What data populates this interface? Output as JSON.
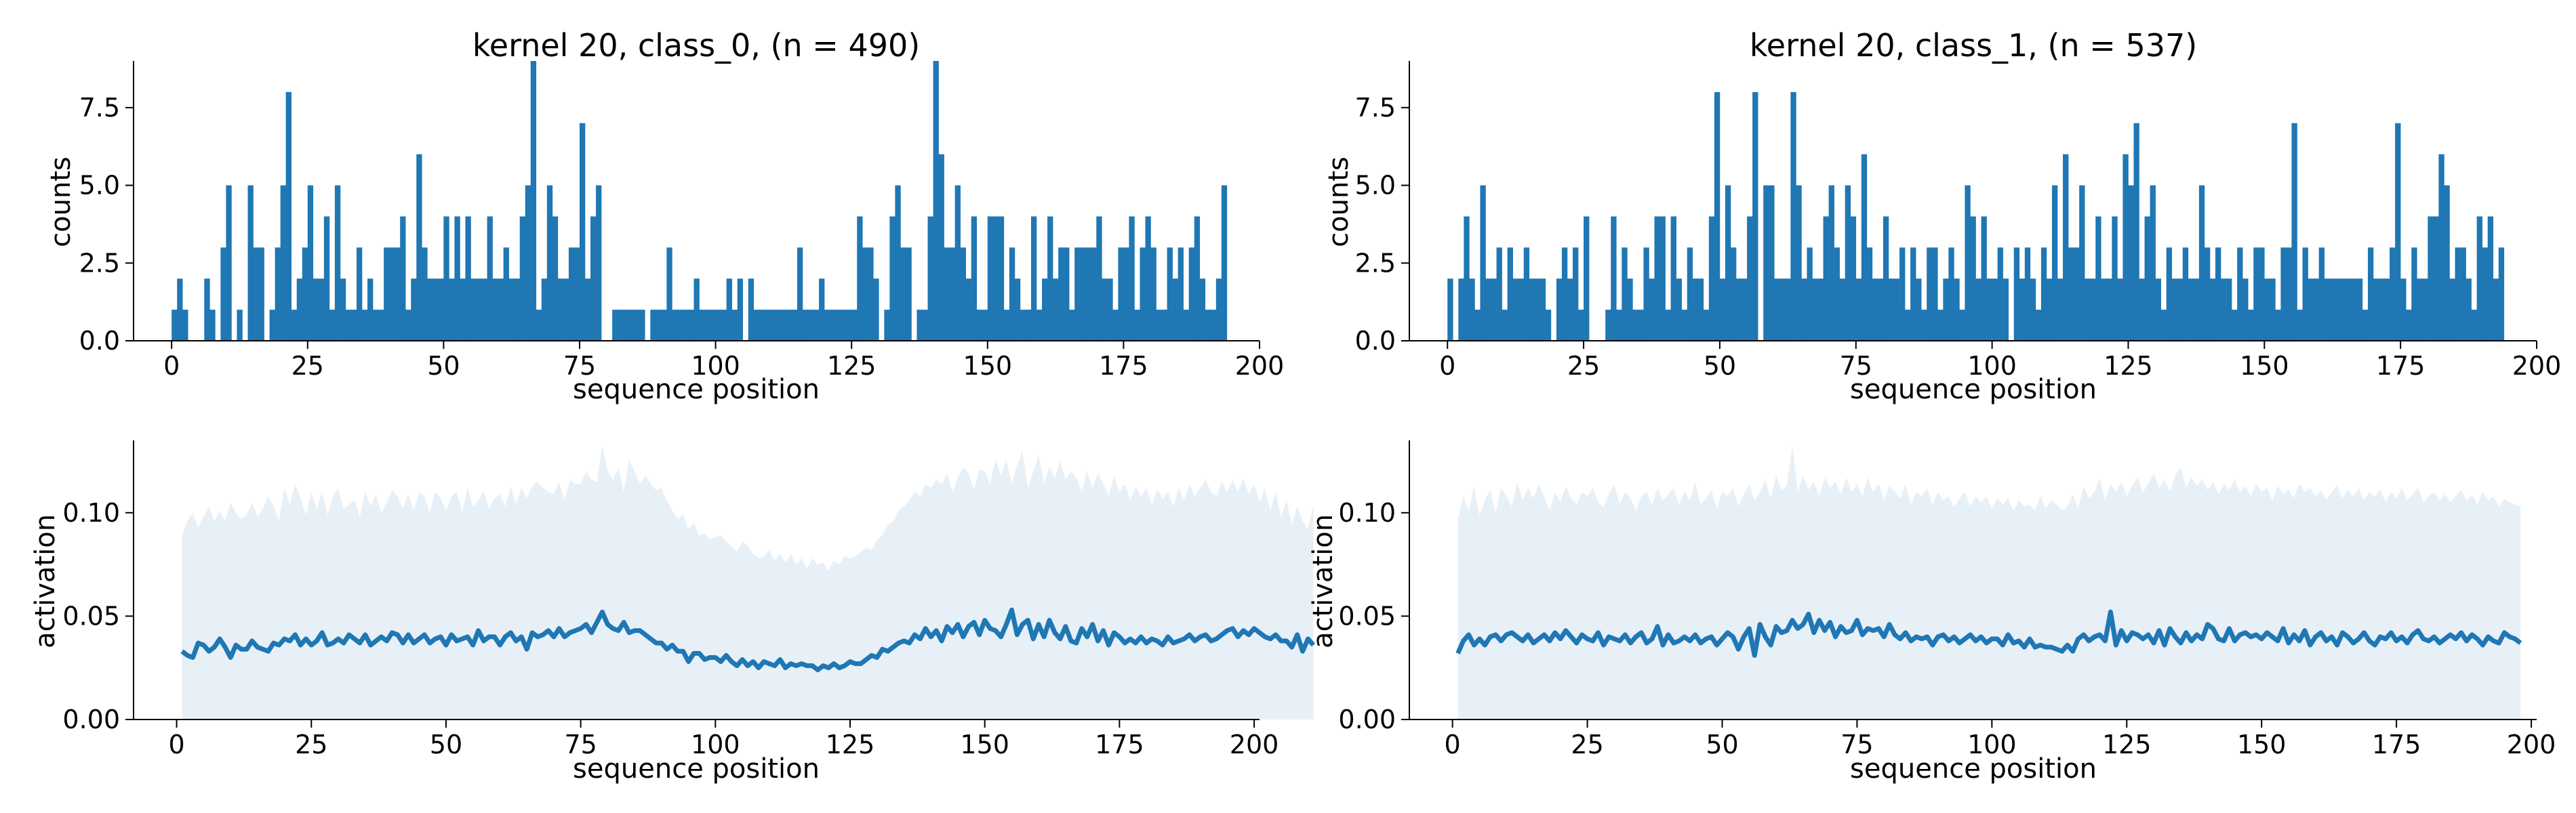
{
  "chart_data": [
    {
      "type": "bar",
      "title": "kernel 20, class_0, (n = 490)",
      "xlabel": "sequence position",
      "ylabel": "counts",
      "xlim": [
        -7,
        200
      ],
      "ylim": [
        0,
        9
      ],
      "xticks": [
        "0",
        "25",
        "50",
        "75",
        "100",
        "125",
        "150",
        "175",
        "200"
      ],
      "yticks": [
        "0.0",
        "2.5",
        "5.0",
        "7.5"
      ],
      "color": "#1f77b4",
      "x_start": 0,
      "values": [
        1,
        2,
        1,
        0,
        0,
        0,
        2,
        1,
        0,
        3,
        5,
        0,
        1,
        0,
        5,
        3,
        3,
        0,
        1,
        3,
        5,
        8,
        1,
        2,
        3,
        5,
        2,
        2,
        4,
        1,
        5,
        2,
        1,
        1,
        3,
        1,
        2,
        1,
        1,
        3,
        3,
        3,
        4,
        1,
        2,
        6,
        3,
        2,
        2,
        2,
        4,
        2,
        4,
        2,
        4,
        2,
        2,
        2,
        4,
        2,
        2,
        3,
        2,
        2,
        4,
        5,
        9,
        1,
        2,
        5,
        4,
        2,
        2,
        3,
        3,
        7,
        2,
        4,
        5,
        0,
        0,
        1,
        1,
        1,
        1,
        1,
        1,
        0,
        1,
        1,
        1,
        3,
        1,
        1,
        1,
        1,
        2,
        1,
        1,
        1,
        1,
        1,
        2,
        1,
        2,
        0,
        2,
        1,
        1,
        1,
        1,
        1,
        1,
        1,
        1,
        3,
        1,
        1,
        1,
        2,
        1,
        1,
        1,
        1,
        1,
        1,
        4,
        3,
        3,
        2,
        0,
        1,
        4,
        5,
        3,
        3,
        0,
        1,
        1,
        4,
        9,
        6,
        3,
        3,
        5,
        3,
        2,
        4,
        1,
        1,
        4,
        4,
        4,
        1,
        3,
        2,
        1,
        1,
        4,
        1,
        2,
        4,
        2,
        3,
        3,
        1,
        3,
        3,
        3,
        3,
        4,
        2,
        2,
        1,
        3,
        3,
        4,
        1,
        3,
        4,
        3,
        1,
        1,
        3,
        2,
        3,
        1,
        3,
        4,
        2,
        1,
        1,
        2,
        5
      ],
      "x_extent": [
        0,
        194
      ]
    },
    {
      "type": "bar",
      "title": "kernel 20, class_1, (n = 537)",
      "xlabel": "sequence position",
      "ylabel": "counts",
      "xlim": [
        -7,
        200
      ],
      "ylim": [
        0,
        9
      ],
      "xticks": [
        "0",
        "25",
        "50",
        "75",
        "100",
        "125",
        "150",
        "175",
        "200"
      ],
      "yticks": [
        "0.0",
        "2.5",
        "5.0",
        "7.5"
      ],
      "color": "#1f77b4",
      "x_start": 0,
      "values": [
        2,
        0,
        2,
        4,
        2,
        1,
        5,
        2,
        2,
        3,
        1,
        3,
        2,
        2,
        3,
        2,
        2,
        2,
        1,
        0,
        2,
        3,
        2,
        3,
        1,
        4,
        0,
        0,
        0,
        1,
        4,
        1,
        3,
        2,
        1,
        1,
        3,
        2,
        4,
        4,
        1,
        4,
        2,
        1,
        3,
        2,
        2,
        1,
        4,
        8,
        2,
        5,
        3,
        2,
        2,
        4,
        8,
        0,
        5,
        5,
        2,
        2,
        2,
        8,
        5,
        2,
        3,
        2,
        2,
        4,
        5,
        3,
        2,
        5,
        4,
        2,
        6,
        3,
        2,
        2,
        4,
        2,
        2,
        3,
        1,
        3,
        2,
        1,
        3,
        3,
        1,
        2,
        3,
        2,
        1,
        5,
        4,
        2,
        4,
        2,
        2,
        3,
        2,
        0,
        3,
        2,
        3,
        2,
        1,
        3,
        2,
        5,
        2,
        6,
        3,
        3,
        5,
        2,
        2,
        4,
        2,
        2,
        4,
        2,
        6,
        5,
        7,
        2,
        4,
        5,
        2,
        1,
        3,
        2,
        2,
        3,
        2,
        2,
        5,
        3,
        2,
        3,
        2,
        2,
        1,
        3,
        2,
        1,
        3,
        3,
        2,
        2,
        1,
        3,
        3,
        7,
        1,
        3,
        2,
        2,
        3,
        2,
        2,
        2,
        2,
        2,
        2,
        2,
        1,
        3,
        2,
        2,
        2,
        3,
        7,
        2,
        1,
        3,
        2,
        2,
        4,
        4,
        6,
        5,
        2,
        3,
        3,
        2,
        1,
        4,
        3,
        4,
        2,
        3
      ],
      "x_extent": [
        0,
        194
      ]
    },
    {
      "type": "line",
      "xlabel": "sequence position",
      "ylabel": "activation",
      "xlim": [
        -8,
        201
      ],
      "ylim": [
        0,
        0.135
      ],
      "xticks": [
        "0",
        "25",
        "50",
        "75",
        "100",
        "125",
        "150",
        "175",
        "200"
      ],
      "yticks": [
        "0.00",
        "0.05",
        "0.10"
      ],
      "line_color": "#1f77b4",
      "band_color": "#e8f0f7",
      "x_start": 1,
      "mean": [
        0.033,
        0.031,
        0.03,
        0.037,
        0.036,
        0.033,
        0.035,
        0.039,
        0.035,
        0.03,
        0.036,
        0.034,
        0.034,
        0.038,
        0.035,
        0.034,
        0.033,
        0.037,
        0.036,
        0.039,
        0.038,
        0.041,
        0.036,
        0.039,
        0.036,
        0.038,
        0.042,
        0.036,
        0.037,
        0.039,
        0.037,
        0.041,
        0.039,
        0.037,
        0.041,
        0.036,
        0.038,
        0.04,
        0.038,
        0.042,
        0.041,
        0.037,
        0.041,
        0.037,
        0.039,
        0.041,
        0.037,
        0.039,
        0.04,
        0.036,
        0.041,
        0.038,
        0.039,
        0.04,
        0.036,
        0.043,
        0.038,
        0.04,
        0.04,
        0.036,
        0.04,
        0.042,
        0.038,
        0.04,
        0.034,
        0.042,
        0.04,
        0.041,
        0.043,
        0.04,
        0.044,
        0.04,
        0.042,
        0.043,
        0.044,
        0.046,
        0.042,
        0.047,
        0.052,
        0.046,
        0.044,
        0.043,
        0.047,
        0.042,
        0.043,
        0.043,
        0.041,
        0.039,
        0.037,
        0.037,
        0.034,
        0.036,
        0.033,
        0.033,
        0.028,
        0.032,
        0.032,
        0.029,
        0.03,
        0.03,
        0.028,
        0.031,
        0.028,
        0.026,
        0.029,
        0.026,
        0.028,
        0.025,
        0.028,
        0.027,
        0.026,
        0.029,
        0.025,
        0.027,
        0.026,
        0.027,
        0.026,
        0.026,
        0.024,
        0.026,
        0.025,
        0.027,
        0.025,
        0.026,
        0.028,
        0.027,
        0.027,
        0.029,
        0.031,
        0.03,
        0.034,
        0.033,
        0.035,
        0.037,
        0.038,
        0.037,
        0.041,
        0.039,
        0.044,
        0.04,
        0.043,
        0.038,
        0.045,
        0.042,
        0.046,
        0.04,
        0.045,
        0.047,
        0.041,
        0.048,
        0.044,
        0.043,
        0.04,
        0.046,
        0.053,
        0.041,
        0.046,
        0.048,
        0.039,
        0.046,
        0.04,
        0.048,
        0.042,
        0.039,
        0.045,
        0.038,
        0.037,
        0.044,
        0.04,
        0.046,
        0.038,
        0.043,
        0.036,
        0.042,
        0.04,
        0.037,
        0.039,
        0.037,
        0.04,
        0.037,
        0.039,
        0.038,
        0.036,
        0.04,
        0.037,
        0.038,
        0.039,
        0.041,
        0.038,
        0.04,
        0.041,
        0.038,
        0.039,
        0.041,
        0.043,
        0.044,
        0.04,
        0.043,
        0.041,
        0.044,
        0.042,
        0.04,
        0.039,
        0.041,
        0.038,
        0.038,
        0.035,
        0.041,
        0.033,
        0.039,
        0.036
      ],
      "upper": [
        0.089,
        0.096,
        0.1,
        0.093,
        0.098,
        0.103,
        0.096,
        0.101,
        0.096,
        0.105,
        0.1,
        0.097,
        0.099,
        0.105,
        0.098,
        0.102,
        0.108,
        0.103,
        0.096,
        0.112,
        0.104,
        0.114,
        0.107,
        0.099,
        0.11,
        0.102,
        0.11,
        0.099,
        0.108,
        0.112,
        0.102,
        0.104,
        0.106,
        0.098,
        0.11,
        0.103,
        0.109,
        0.1,
        0.105,
        0.111,
        0.108,
        0.102,
        0.109,
        0.101,
        0.11,
        0.108,
        0.1,
        0.11,
        0.107,
        0.101,
        0.108,
        0.11,
        0.1,
        0.112,
        0.103,
        0.106,
        0.11,
        0.102,
        0.107,
        0.109,
        0.103,
        0.113,
        0.104,
        0.112,
        0.107,
        0.113,
        0.115,
        0.112,
        0.11,
        0.109,
        0.115,
        0.106,
        0.116,
        0.114,
        0.114,
        0.12,
        0.116,
        0.115,
        0.133,
        0.12,
        0.116,
        0.122,
        0.11,
        0.126,
        0.12,
        0.114,
        0.118,
        0.114,
        0.111,
        0.112,
        0.106,
        0.101,
        0.097,
        0.099,
        0.092,
        0.095,
        0.089,
        0.09,
        0.087,
        0.088,
        0.089,
        0.086,
        0.084,
        0.081,
        0.086,
        0.084,
        0.08,
        0.078,
        0.079,
        0.082,
        0.077,
        0.08,
        0.076,
        0.08,
        0.075,
        0.078,
        0.073,
        0.078,
        0.075,
        0.076,
        0.072,
        0.077,
        0.075,
        0.079,
        0.078,
        0.079,
        0.081,
        0.083,
        0.082,
        0.087,
        0.089,
        0.094,
        0.096,
        0.101,
        0.103,
        0.106,
        0.11,
        0.108,
        0.114,
        0.112,
        0.116,
        0.114,
        0.119,
        0.11,
        0.117,
        0.122,
        0.119,
        0.111,
        0.121,
        0.12,
        0.114,
        0.126,
        0.118,
        0.126,
        0.114,
        0.123,
        0.13,
        0.112,
        0.12,
        0.128,
        0.114,
        0.122,
        0.117,
        0.125,
        0.116,
        0.12,
        0.117,
        0.11,
        0.12,
        0.112,
        0.119,
        0.114,
        0.108,
        0.118,
        0.11,
        0.114,
        0.106,
        0.113,
        0.108,
        0.112,
        0.104,
        0.111,
        0.107,
        0.11,
        0.103,
        0.112,
        0.106,
        0.114,
        0.108,
        0.112,
        0.116,
        0.11,
        0.108,
        0.115,
        0.11,
        0.116,
        0.11,
        0.117,
        0.109,
        0.114,
        0.105,
        0.112,
        0.101,
        0.11,
        0.098,
        0.106,
        0.094,
        0.103,
        0.096,
        0.092,
        0.104
      ],
      "x_extent": [
        1,
        194
      ]
    },
    {
      "type": "line",
      "xlabel": "sequence position",
      "ylabel": "activation",
      "xlim": [
        -8,
        201
      ],
      "ylim": [
        0,
        0.135
      ],
      "xticks": [
        "0",
        "25",
        "50",
        "75",
        "100",
        "125",
        "150",
        "175",
        "200"
      ],
      "yticks": [
        "0.00",
        "0.05",
        "0.10"
      ],
      "line_color": "#1f77b4",
      "band_color": "#e8f0f7",
      "x_start": 1,
      "mean": [
        0.032,
        0.038,
        0.041,
        0.036,
        0.039,
        0.036,
        0.04,
        0.041,
        0.038,
        0.041,
        0.042,
        0.04,
        0.038,
        0.041,
        0.037,
        0.039,
        0.041,
        0.038,
        0.042,
        0.039,
        0.043,
        0.04,
        0.037,
        0.041,
        0.039,
        0.038,
        0.042,
        0.036,
        0.04,
        0.039,
        0.038,
        0.041,
        0.037,
        0.04,
        0.042,
        0.037,
        0.039,
        0.045,
        0.036,
        0.041,
        0.037,
        0.038,
        0.04,
        0.038,
        0.041,
        0.037,
        0.039,
        0.04,
        0.036,
        0.039,
        0.042,
        0.04,
        0.034,
        0.04,
        0.044,
        0.031,
        0.046,
        0.04,
        0.036,
        0.045,
        0.042,
        0.043,
        0.048,
        0.044,
        0.046,
        0.051,
        0.042,
        0.048,
        0.043,
        0.047,
        0.04,
        0.045,
        0.042,
        0.043,
        0.048,
        0.041,
        0.044,
        0.043,
        0.044,
        0.04,
        0.046,
        0.041,
        0.039,
        0.042,
        0.038,
        0.04,
        0.039,
        0.04,
        0.036,
        0.04,
        0.041,
        0.038,
        0.04,
        0.037,
        0.039,
        0.041,
        0.038,
        0.04,
        0.037,
        0.039,
        0.039,
        0.036,
        0.041,
        0.037,
        0.038,
        0.035,
        0.039,
        0.035,
        0.036,
        0.035,
        0.035,
        0.034,
        0.033,
        0.036,
        0.033,
        0.039,
        0.041,
        0.038,
        0.04,
        0.041,
        0.038,
        0.052,
        0.036,
        0.043,
        0.038,
        0.042,
        0.041,
        0.039,
        0.041,
        0.037,
        0.043,
        0.036,
        0.044,
        0.04,
        0.037,
        0.042,
        0.038,
        0.041,
        0.039,
        0.046,
        0.044,
        0.039,
        0.038,
        0.044,
        0.038,
        0.041,
        0.042,
        0.04,
        0.041,
        0.039,
        0.042,
        0.04,
        0.038,
        0.044,
        0.037,
        0.041,
        0.038,
        0.043,
        0.036,
        0.04,
        0.042,
        0.038,
        0.04,
        0.036,
        0.042,
        0.04,
        0.037,
        0.039,
        0.042,
        0.038,
        0.036,
        0.04,
        0.039,
        0.042,
        0.038,
        0.04,
        0.037,
        0.041,
        0.043,
        0.039,
        0.038,
        0.04,
        0.037,
        0.039,
        0.041,
        0.039,
        0.042,
        0.038,
        0.041,
        0.039,
        0.036,
        0.04,
        0.038,
        0.037,
        0.042,
        0.04,
        0.039,
        0.037
      ],
      "upper": [
        0.097,
        0.108,
        0.101,
        0.113,
        0.099,
        0.106,
        0.111,
        0.1,
        0.112,
        0.108,
        0.103,
        0.115,
        0.106,
        0.112,
        0.107,
        0.114,
        0.108,
        0.101,
        0.11,
        0.105,
        0.113,
        0.107,
        0.104,
        0.11,
        0.108,
        0.112,
        0.105,
        0.103,
        0.109,
        0.114,
        0.104,
        0.11,
        0.107,
        0.101,
        0.108,
        0.11,
        0.104,
        0.112,
        0.106,
        0.109,
        0.112,
        0.104,
        0.11,
        0.106,
        0.115,
        0.104,
        0.107,
        0.111,
        0.102,
        0.11,
        0.108,
        0.112,
        0.103,
        0.109,
        0.114,
        0.106,
        0.11,
        0.116,
        0.107,
        0.118,
        0.111,
        0.113,
        0.133,
        0.11,
        0.118,
        0.111,
        0.115,
        0.108,
        0.117,
        0.112,
        0.115,
        0.109,
        0.117,
        0.11,
        0.114,
        0.108,
        0.117,
        0.11,
        0.114,
        0.106,
        0.113,
        0.11,
        0.107,
        0.114,
        0.104,
        0.11,
        0.108,
        0.112,
        0.104,
        0.11,
        0.106,
        0.108,
        0.103,
        0.107,
        0.11,
        0.103,
        0.108,
        0.105,
        0.108,
        0.102,
        0.107,
        0.104,
        0.107,
        0.101,
        0.106,
        0.103,
        0.104,
        0.101,
        0.108,
        0.102,
        0.106,
        0.104,
        0.101,
        0.103,
        0.109,
        0.102,
        0.113,
        0.107,
        0.11,
        0.117,
        0.106,
        0.114,
        0.11,
        0.115,
        0.108,
        0.113,
        0.117,
        0.11,
        0.114,
        0.119,
        0.112,
        0.116,
        0.11,
        0.118,
        0.122,
        0.112,
        0.117,
        0.113,
        0.116,
        0.111,
        0.115,
        0.109,
        0.114,
        0.111,
        0.116,
        0.11,
        0.113,
        0.108,
        0.114,
        0.11,
        0.112,
        0.106,
        0.113,
        0.109,
        0.111,
        0.107,
        0.114,
        0.11,
        0.112,
        0.108,
        0.111,
        0.106,
        0.11,
        0.113,
        0.107,
        0.111,
        0.108,
        0.112,
        0.106,
        0.11,
        0.108,
        0.111,
        0.105,
        0.11,
        0.107,
        0.112,
        0.106,
        0.109,
        0.112,
        0.105,
        0.108,
        0.11,
        0.106,
        0.109,
        0.105,
        0.108,
        0.111,
        0.106,
        0.109,
        0.104,
        0.11,
        0.106,
        0.108,
        0.103,
        0.107,
        0.105,
        0.104,
        0.103
      ],
      "x_extent": [
        1,
        194
      ]
    }
  ]
}
